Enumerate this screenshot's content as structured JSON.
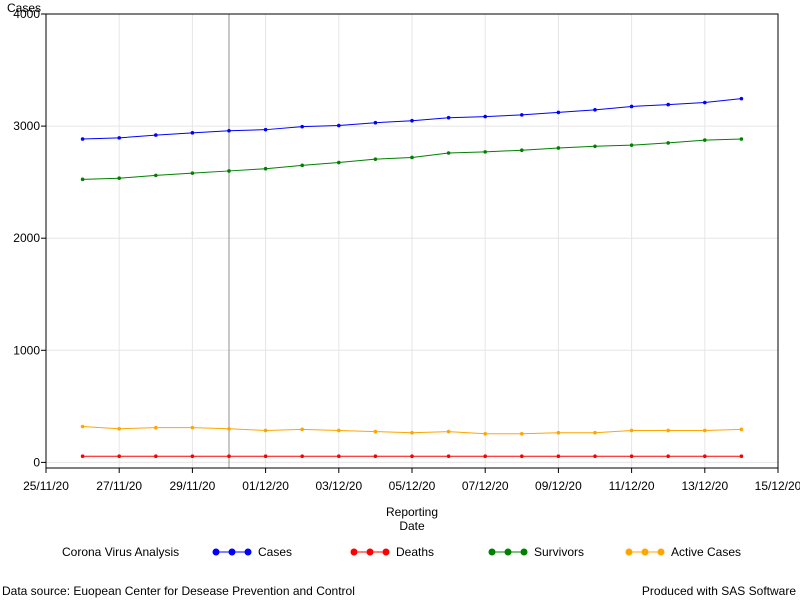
{
  "chart_data": {
    "type": "line",
    "ylabel": "Cases",
    "xlabel_lines": [
      "Reporting",
      "Date"
    ],
    "ylim": [
      -50,
      4000
    ],
    "y_ticks": [
      0,
      1000,
      2000,
      3000,
      4000
    ],
    "x_range": [
      "2020-11-25",
      "2020-12-15"
    ],
    "x_ticks": [
      "25/11/20",
      "27/11/20",
      "29/11/20",
      "01/12/20",
      "03/12/20",
      "05/12/20",
      "07/12/20",
      "09/12/20",
      "11/12/20",
      "13/12/20",
      "15/12/20"
    ],
    "x_tick_dates": [
      "2020-11-25",
      "2020-11-27",
      "2020-11-29",
      "2020-12-01",
      "2020-12-03",
      "2020-12-05",
      "2020-12-07",
      "2020-12-09",
      "2020-12-11",
      "2020-12-13",
      "2020-12-15"
    ],
    "grid": true,
    "reference_line_x": "2020-11-30",
    "legend_position": "bottom",
    "legend_title": "Corona Virus Analysis",
    "x": [
      "2020-11-26",
      "2020-11-27",
      "2020-11-28",
      "2020-11-29",
      "2020-11-30",
      "2020-12-01",
      "2020-12-02",
      "2020-12-03",
      "2020-12-04",
      "2020-12-05",
      "2020-12-06",
      "2020-12-07",
      "2020-12-08",
      "2020-12-09",
      "2020-12-10",
      "2020-12-11",
      "2020-12-12",
      "2020-12-13",
      "2020-12-14"
    ],
    "series": [
      {
        "name": "Cases",
        "color": "#0000ff",
        "values": [
          2885,
          2895,
          2920,
          2940,
          2958,
          2968,
          2995,
          3005,
          3030,
          3048,
          3075,
          3085,
          3100,
          3122,
          3145,
          3175,
          3192,
          3210,
          3245
        ]
      },
      {
        "name": "Deaths",
        "color": "#ff0000",
        "values": [
          55,
          55,
          55,
          55,
          55,
          55,
          55,
          55,
          55,
          55,
          55,
          55,
          55,
          55,
          55,
          55,
          55,
          55,
          55
        ]
      },
      {
        "name": "Survivors",
        "color": "#008000",
        "values": [
          2525,
          2535,
          2560,
          2580,
          2600,
          2620,
          2650,
          2675,
          2705,
          2720,
          2760,
          2770,
          2785,
          2805,
          2820,
          2830,
          2850,
          2875,
          2885
        ]
      },
      {
        "name": "Active Cases",
        "color": "#ffa500",
        "values": [
          320,
          300,
          310,
          310,
          300,
          285,
          295,
          285,
          275,
          265,
          275,
          255,
          255,
          265,
          265,
          285,
          285,
          285,
          295
        ]
      }
    ]
  },
  "footer": {
    "source": "Data source: Euopean Center for Desease Prevention and Control",
    "produced": "Produced with SAS Software"
  }
}
